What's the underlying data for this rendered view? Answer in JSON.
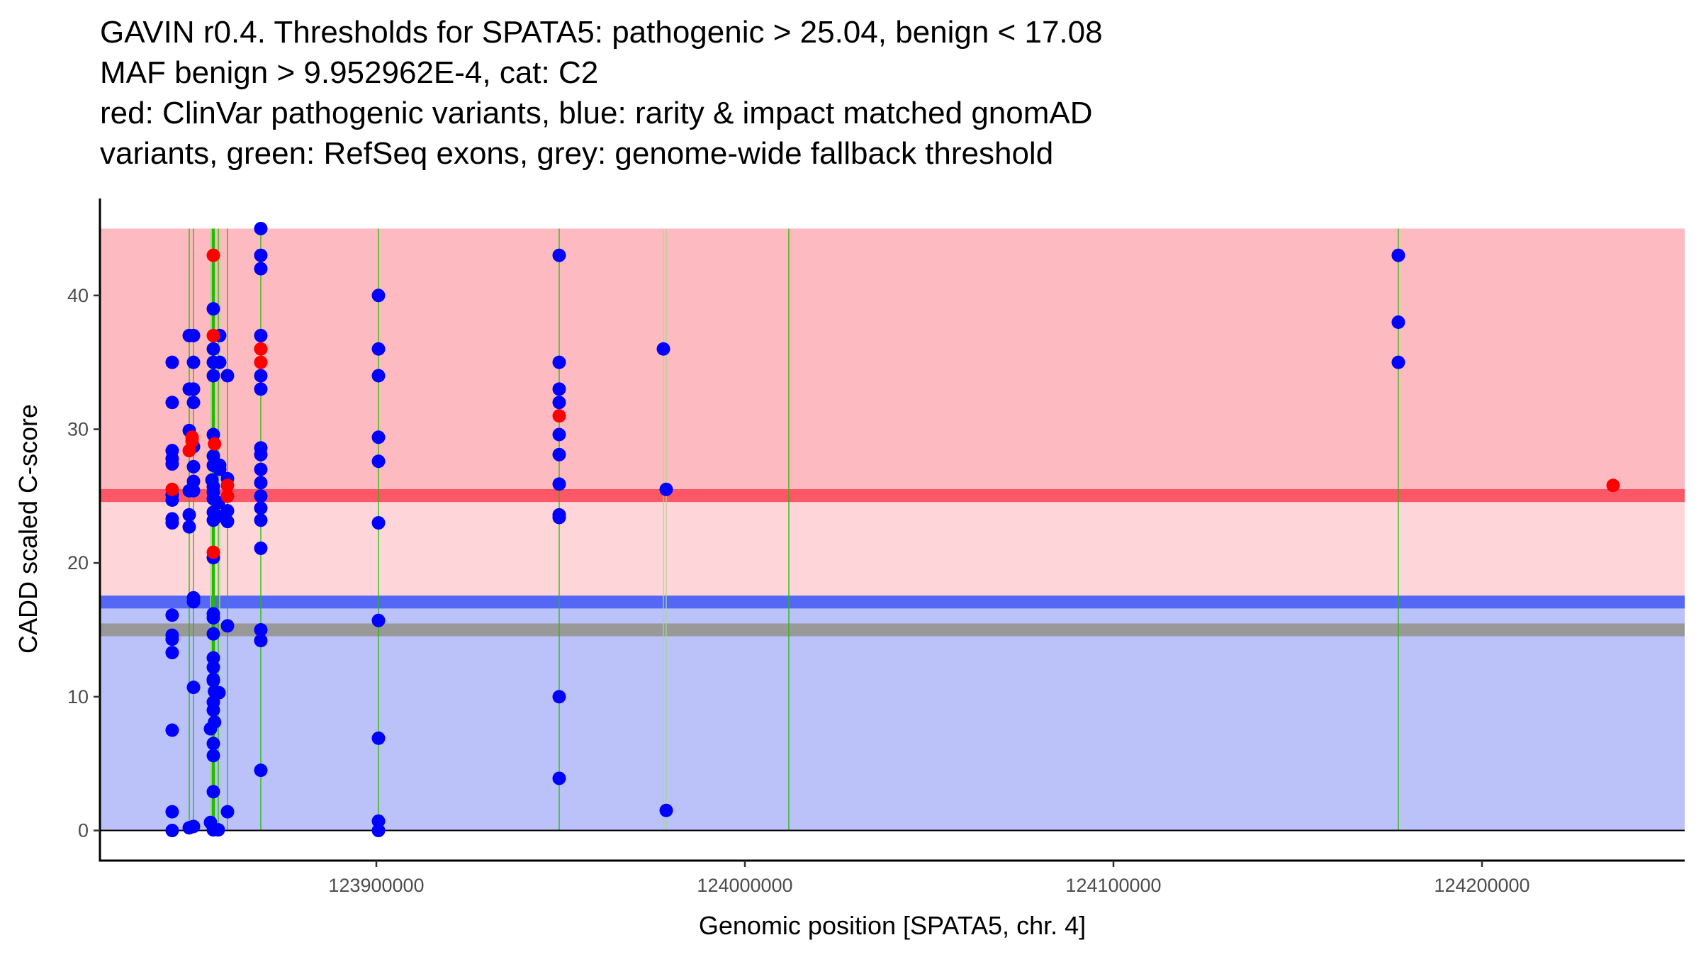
{
  "chart_data": {
    "type": "scatter",
    "title_lines": [
      "GAVIN r0.4. Thresholds for SPATA5: pathogenic > 25.04, benign < 17.08",
      "MAF benign > 9.952962E-4, cat: C2",
      "red: ClinVar pathogenic variants, blue: rarity & impact matched gnomAD",
      "variants, green: RefSeq exons, grey: genome-wide fallback threshold"
    ],
    "xlabel": "Genomic position [SPATA5, chr. 4]",
    "ylabel": "CADD scaled C-score",
    "xlim": [
      123825000,
      124255000
    ],
    "ylim": [
      -2.25,
      47.25
    ],
    "x_ticks": [
      123900000,
      124000000,
      124100000,
      124200000
    ],
    "x_tick_labels": [
      "123900000",
      "124000000",
      "124100000",
      "124200000"
    ],
    "y_ticks": [
      0,
      10,
      20,
      30,
      40
    ],
    "y_tick_labels": [
      "0",
      "10",
      "20",
      "30",
      "40"
    ],
    "grid": false,
    "legend": "none",
    "thresholds": {
      "pathogenic": 25.04,
      "benign": 17.08,
      "genome_wide_fallback": 15.0,
      "max_score": 45.0
    },
    "regions": [
      {
        "name": "pathogenic-region",
        "from": 25.04,
        "to": 45.0,
        "color": "#fdbbc1"
      },
      {
        "name": "vus-region",
        "from": 17.08,
        "to": 25.04,
        "color": "#fed6da"
      },
      {
        "name": "benign-region",
        "from": 0,
        "to": 17.08,
        "color": "#bbc1f9"
      }
    ],
    "threshold_bands": [
      {
        "name": "pathogenic-threshold",
        "value": 25.04,
        "color": "#fc5766"
      },
      {
        "name": "benign-threshold",
        "value": 17.08,
        "color": "#5468f5"
      },
      {
        "name": "fallback-threshold",
        "value": 15.0,
        "color": "#999999"
      }
    ],
    "exons": [
      {
        "pos": 123849230,
        "color": "#22bb00"
      },
      {
        "pos": 123850385,
        "color": "#22bb00"
      },
      {
        "pos": 123855000,
        "color": "#a8d88a"
      },
      {
        "pos": 123855770,
        "color": "#22bb00",
        "thick": true
      },
      {
        "pos": 123857115,
        "color": "#22bb00"
      },
      {
        "pos": 123857500,
        "color": "#a8d88a"
      },
      {
        "pos": 123859615,
        "color": "#22bb00"
      },
      {
        "pos": 123868650,
        "color": "#22bb00"
      },
      {
        "pos": 123900580,
        "color": "#22bb00"
      },
      {
        "pos": 123949615,
        "color": "#22bb00"
      },
      {
        "pos": 123977885,
        "color": "#a8d88a"
      },
      {
        "pos": 123978650,
        "color": "#a8d88a"
      },
      {
        "pos": 124011920,
        "color": "#22bb00"
      },
      {
        "pos": 124177300,
        "color": "#22bb00"
      }
    ],
    "series": [
      {
        "name": "gnomAD (blue)",
        "color": "#0000ff",
        "points": [
          [
            123844600,
            35.0
          ],
          [
            123844600,
            32.0
          ],
          [
            123844600,
            28.4
          ],
          [
            123844600,
            27.8
          ],
          [
            123844600,
            27.4
          ],
          [
            123844600,
            25.1
          ],
          [
            123844600,
            24.7
          ],
          [
            123844600,
            23.3
          ],
          [
            123844600,
            23.0
          ],
          [
            123844600,
            16.1
          ],
          [
            123844600,
            14.6
          ],
          [
            123844600,
            14.3
          ],
          [
            123844600,
            13.3
          ],
          [
            123844600,
            7.5
          ],
          [
            123844600,
            1.4
          ],
          [
            123844600,
            0.0
          ],
          [
            123849230,
            37.0
          ],
          [
            123850385,
            37.0
          ],
          [
            123849230,
            33.0
          ],
          [
            123850385,
            33.0
          ],
          [
            123850385,
            35.0
          ],
          [
            123850385,
            32.0
          ],
          [
            123849230,
            29.9
          ],
          [
            123850385,
            28.7
          ],
          [
            123850385,
            27.2
          ],
          [
            123850385,
            26.1
          ],
          [
            123849230,
            25.4
          ],
          [
            123850385,
            25.4
          ],
          [
            123849230,
            23.6
          ],
          [
            123849230,
            22.7
          ],
          [
            123850385,
            17.4
          ],
          [
            123850385,
            17.1
          ],
          [
            123850385,
            10.7
          ],
          [
            123849230,
            0.2
          ],
          [
            123850385,
            0.3
          ],
          [
            123855770,
            39.0
          ],
          [
            123855770,
            36.0
          ],
          [
            123855770,
            35.0
          ],
          [
            123855770,
            34.0
          ],
          [
            123857500,
            37.0
          ],
          [
            123857500,
            35.0
          ],
          [
            123855770,
            29.6
          ],
          [
            123855770,
            28.0
          ],
          [
            123855770,
            27.3
          ],
          [
            123857500,
            27.3
          ],
          [
            123857500,
            27.0
          ],
          [
            123855400,
            26.2
          ],
          [
            123855770,
            25.7
          ],
          [
            123855770,
            25.3
          ],
          [
            123855770,
            24.8
          ],
          [
            123855770,
            23.8
          ],
          [
            123855770,
            23.2
          ],
          [
            123857115,
            24.5
          ],
          [
            123857115,
            23.5
          ],
          [
            123855770,
            20.4
          ],
          [
            123855770,
            16.2
          ],
          [
            123855770,
            15.9
          ],
          [
            123855770,
            14.7
          ],
          [
            123855770,
            12.9
          ],
          [
            123855770,
            12.2
          ],
          [
            123855770,
            11.3
          ],
          [
            123855770,
            11.2
          ],
          [
            123856100,
            10.4
          ],
          [
            123857300,
            10.3
          ],
          [
            123855770,
            9.6
          ],
          [
            123855770,
            9.0
          ],
          [
            123856100,
            8.1
          ],
          [
            123855000,
            7.6
          ],
          [
            123855770,
            6.5
          ],
          [
            123855770,
            5.6
          ],
          [
            123855770,
            2.9
          ],
          [
            123855000,
            0.6
          ],
          [
            123855770,
            0.05
          ],
          [
            123857115,
            0.05
          ],
          [
            123859615,
            34.0
          ],
          [
            123859615,
            26.3
          ],
          [
            123859615,
            23.9
          ],
          [
            123859615,
            23.1
          ],
          [
            123859615,
            15.3
          ],
          [
            123859615,
            1.4
          ],
          [
            123868650,
            45.0
          ],
          [
            123868650,
            43.0
          ],
          [
            123868650,
            42.0
          ],
          [
            123868650,
            37.0
          ],
          [
            123868650,
            34.0
          ],
          [
            123868650,
            33.0
          ],
          [
            123868650,
            28.6
          ],
          [
            123868650,
            28.1
          ],
          [
            123868650,
            27.0
          ],
          [
            123868650,
            26.0
          ],
          [
            123868650,
            25.0
          ],
          [
            123868650,
            24.1
          ],
          [
            123868650,
            23.2
          ],
          [
            123868650,
            21.1
          ],
          [
            123868650,
            15.0
          ],
          [
            123868650,
            14.2
          ],
          [
            123868650,
            4.5
          ],
          [
            123900580,
            40.0
          ],
          [
            123900580,
            36.0
          ],
          [
            123900580,
            34.0
          ],
          [
            123900580,
            29.4
          ],
          [
            123900580,
            27.6
          ],
          [
            123900580,
            23.0
          ],
          [
            123900580,
            15.7
          ],
          [
            123900580,
            6.9
          ],
          [
            123900580,
            0.7
          ],
          [
            123900580,
            0.0
          ],
          [
            123949615,
            43.0
          ],
          [
            123949615,
            35.0
          ],
          [
            123949615,
            33.0
          ],
          [
            123949615,
            32.0
          ],
          [
            123949615,
            29.6
          ],
          [
            123949615,
            28.1
          ],
          [
            123949615,
            25.9
          ],
          [
            123949615,
            23.6
          ],
          [
            123949615,
            23.4
          ],
          [
            123949615,
            10.0
          ],
          [
            123949615,
            3.9
          ],
          [
            123977885,
            36.0
          ],
          [
            123978650,
            25.5
          ],
          [
            123978650,
            1.5
          ],
          [
            124177300,
            43.0
          ],
          [
            124177300,
            38.0
          ],
          [
            124177300,
            35.0
          ]
        ]
      },
      {
        "name": "ClinVar pathogenic (red)",
        "color": "#ff0000",
        "points": [
          [
            123855770,
            43.0
          ],
          [
            123855770,
            37.0
          ],
          [
            123850000,
            29.4
          ],
          [
            123850000,
            29.1
          ],
          [
            123849230,
            28.4
          ],
          [
            123844600,
            25.5
          ],
          [
            123856100,
            28.9
          ],
          [
            123859615,
            25.8
          ],
          [
            123859615,
            25.0
          ],
          [
            123855770,
            20.8
          ],
          [
            123868650,
            36.0
          ],
          [
            123868650,
            35.0
          ],
          [
            123949615,
            31.0
          ],
          [
            124235580,
            25.8
          ]
        ]
      }
    ]
  }
}
